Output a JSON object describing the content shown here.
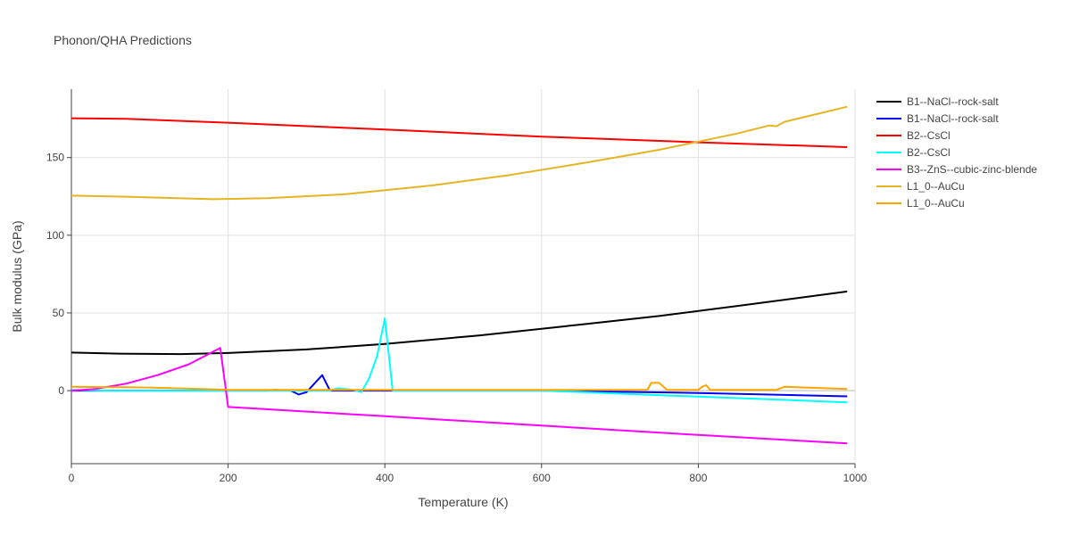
{
  "chart_data": {
    "type": "line",
    "title": "Phonon/QHA Predictions",
    "xlabel": "Temperature (K)",
    "ylabel": "Bulk modulus (GPa)",
    "xlim": [
      0,
      1000
    ],
    "ylim": [
      -47,
      194
    ],
    "xticks": [
      0,
      200,
      400,
      600,
      800,
      1000
    ],
    "yticks": [
      0,
      50,
      100,
      150
    ],
    "grid": true,
    "legend_position": "top-right",
    "series": [
      {
        "name": "B1--NaCl--rock-salt",
        "color": "#000000",
        "x": [
          0,
          60,
          140,
          200,
          300,
          400,
          520,
          650,
          750,
          850,
          990
        ],
        "y": [
          24.5,
          23.8,
          23.5,
          24.2,
          26.5,
          30,
          35.5,
          42.5,
          48,
          54.5,
          63.8
        ]
      },
      {
        "name": "B1--NaCl--rock-salt",
        "color": "#0000ff",
        "x": [
          0,
          200,
          250,
          260,
          280,
          290,
          300,
          320,
          330,
          600,
          800,
          990
        ],
        "y": [
          0,
          0,
          0,
          0.5,
          0,
          -2.5,
          -1,
          10,
          0,
          0,
          -1.5,
          -3.7
        ]
      },
      {
        "name": "B2--CsCl",
        "color": "#ff0000",
        "x": [
          0,
          70,
          200,
          400,
          600,
          800,
          990
        ],
        "y": [
          175.3,
          174.9,
          172.4,
          168,
          163.5,
          159.8,
          156.7
        ]
      },
      {
        "name": "B2--CsCl",
        "color": "#00ffff",
        "x": [
          0,
          50,
          330,
          340,
          360,
          370,
          380,
          390,
          400,
          410,
          600,
          990
        ],
        "y": [
          0.5,
          0,
          0,
          1.5,
          0.5,
          -1,
          8,
          22,
          46.5,
          0,
          0,
          -7.5
        ]
      },
      {
        "name": "B3--ZnS--cubic-zinc-blende",
        "color": "#ff00ff",
        "x": [
          0,
          30,
          70,
          110,
          150,
          190,
          200,
          400,
          600,
          800,
          990
        ],
        "y": [
          0,
          1,
          4.5,
          10,
          17,
          27.5,
          -10.5,
          -16.5,
          -22.5,
          -28.5,
          -34
        ]
      },
      {
        "name": "L1_0--AuCu",
        "color": "#e6b422",
        "x": [
          0,
          70,
          180,
          250,
          350,
          460,
          560,
          660,
          750,
          850,
          890,
          900,
          910,
          990
        ],
        "y": [
          125.5,
          124.8,
          123.2,
          123.8,
          126.4,
          132,
          138.8,
          147,
          155,
          165.5,
          170.6,
          170.2,
          173,
          182.7
        ]
      },
      {
        "name": "L1_0--AuCu",
        "color": "#ffa500",
        "x": [
          0,
          100,
          200,
          600,
          735,
          740,
          750,
          760,
          800,
          805,
          810,
          815,
          900,
          910,
          990
        ],
        "y": [
          2.5,
          2,
          0.5,
          0.5,
          0.5,
          5,
          5,
          0.5,
          0.5,
          2.5,
          3.5,
          0.5,
          0.5,
          2.5,
          1
        ]
      }
    ]
  }
}
